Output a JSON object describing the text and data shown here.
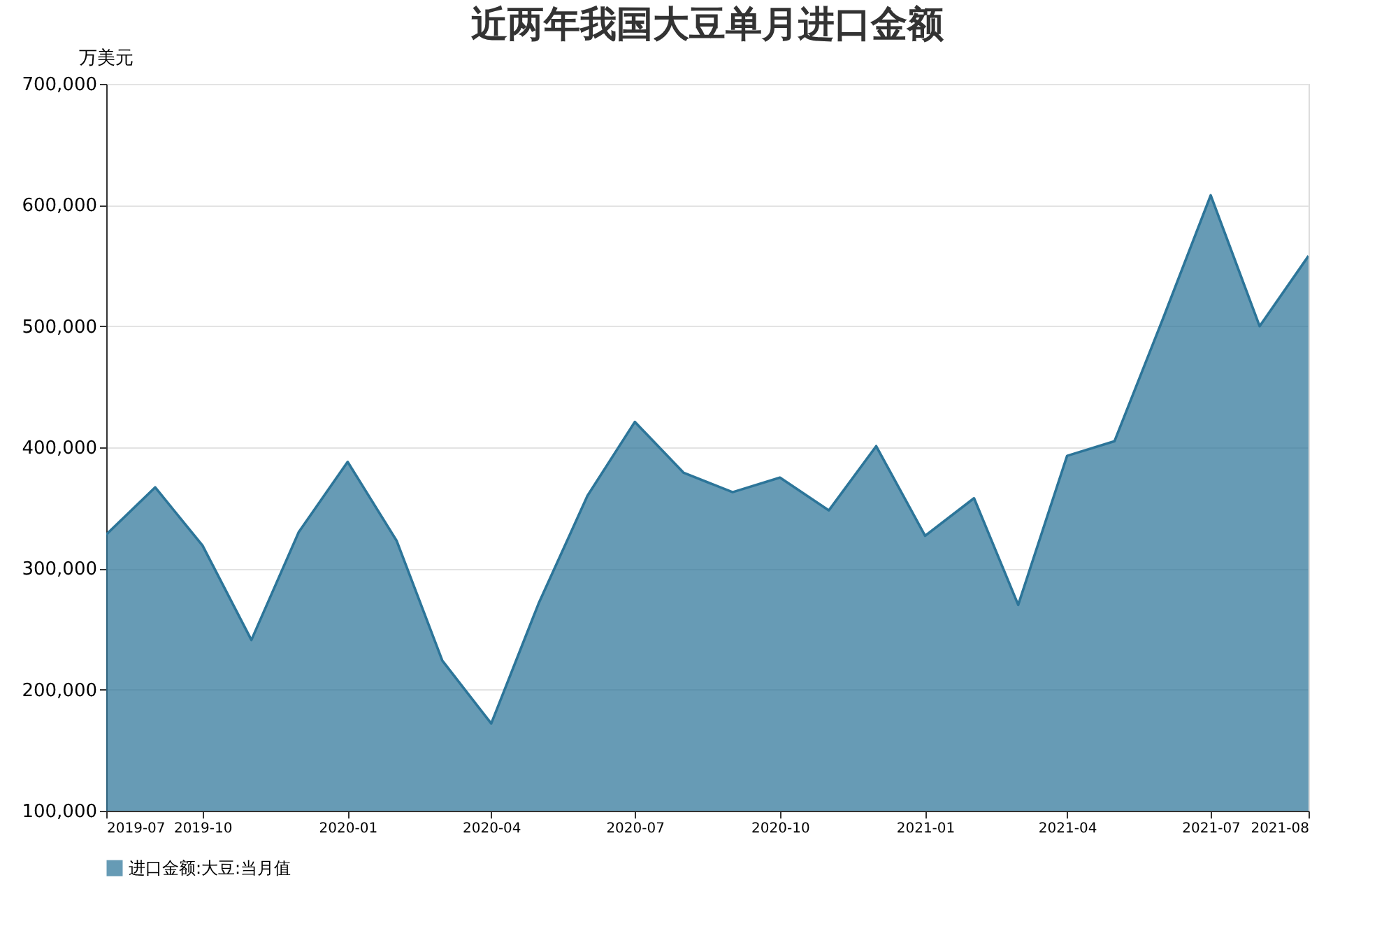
{
  "chart_data": {
    "type": "area",
    "title": "近两年我国大豆单月进口金额",
    "ylabel": "万美元",
    "x": [
      "2019-08",
      "2019-09",
      "2019-10",
      "2019-11",
      "2019-12",
      "2020-01",
      "2020-02",
      "2020-03",
      "2020-04",
      "2020-05",
      "2020-06",
      "2020-07",
      "2020-08",
      "2020-09",
      "2020-10",
      "2020-11",
      "2020-12",
      "2021-01",
      "2021-02",
      "2021-03",
      "2021-04",
      "2021-05",
      "2021-06",
      "2021-07",
      "2021-08",
      "2021-09"
    ],
    "xlim": [
      "2019-08",
      "2021-09"
    ],
    "xticks": [
      {
        "value": "2019-08",
        "label": "2019-07"
      },
      "2019-10",
      "2020-01",
      "2020-04",
      "2020-07",
      "2020-10",
      "2021-01",
      "2021-04",
      "2021-07",
      {
        "value": "2021-09",
        "label": "2021-08"
      }
    ],
    "series": [
      {
        "name": "进口金额:大豆:当月值",
        "color": "#2c7599",
        "values": [
          328000,
          367000,
          319000,
          241000,
          330000,
          388000,
          323000,
          224000,
          172000,
          271000,
          360000,
          421000,
          379000,
          363000,
          375000,
          348000,
          401000,
          327000,
          358000,
          270000,
          393000,
          405000,
          507000,
          608000,
          500000,
          558000
        ]
      }
    ],
    "ylim": [
      100000,
      700000
    ],
    "yticks": [
      {
        "value": 100000,
        "label": "100,000"
      },
      {
        "value": 200000,
        "label": "200,000"
      },
      {
        "value": 300000,
        "label": "300,000"
      },
      {
        "value": 400000,
        "label": "400,000"
      },
      {
        "value": 500000,
        "label": "500,000"
      },
      {
        "value": 600000,
        "label": "600,000"
      },
      {
        "value": 700000,
        "label": "700,000"
      }
    ],
    "grid": "y",
    "legend": "bottom"
  }
}
